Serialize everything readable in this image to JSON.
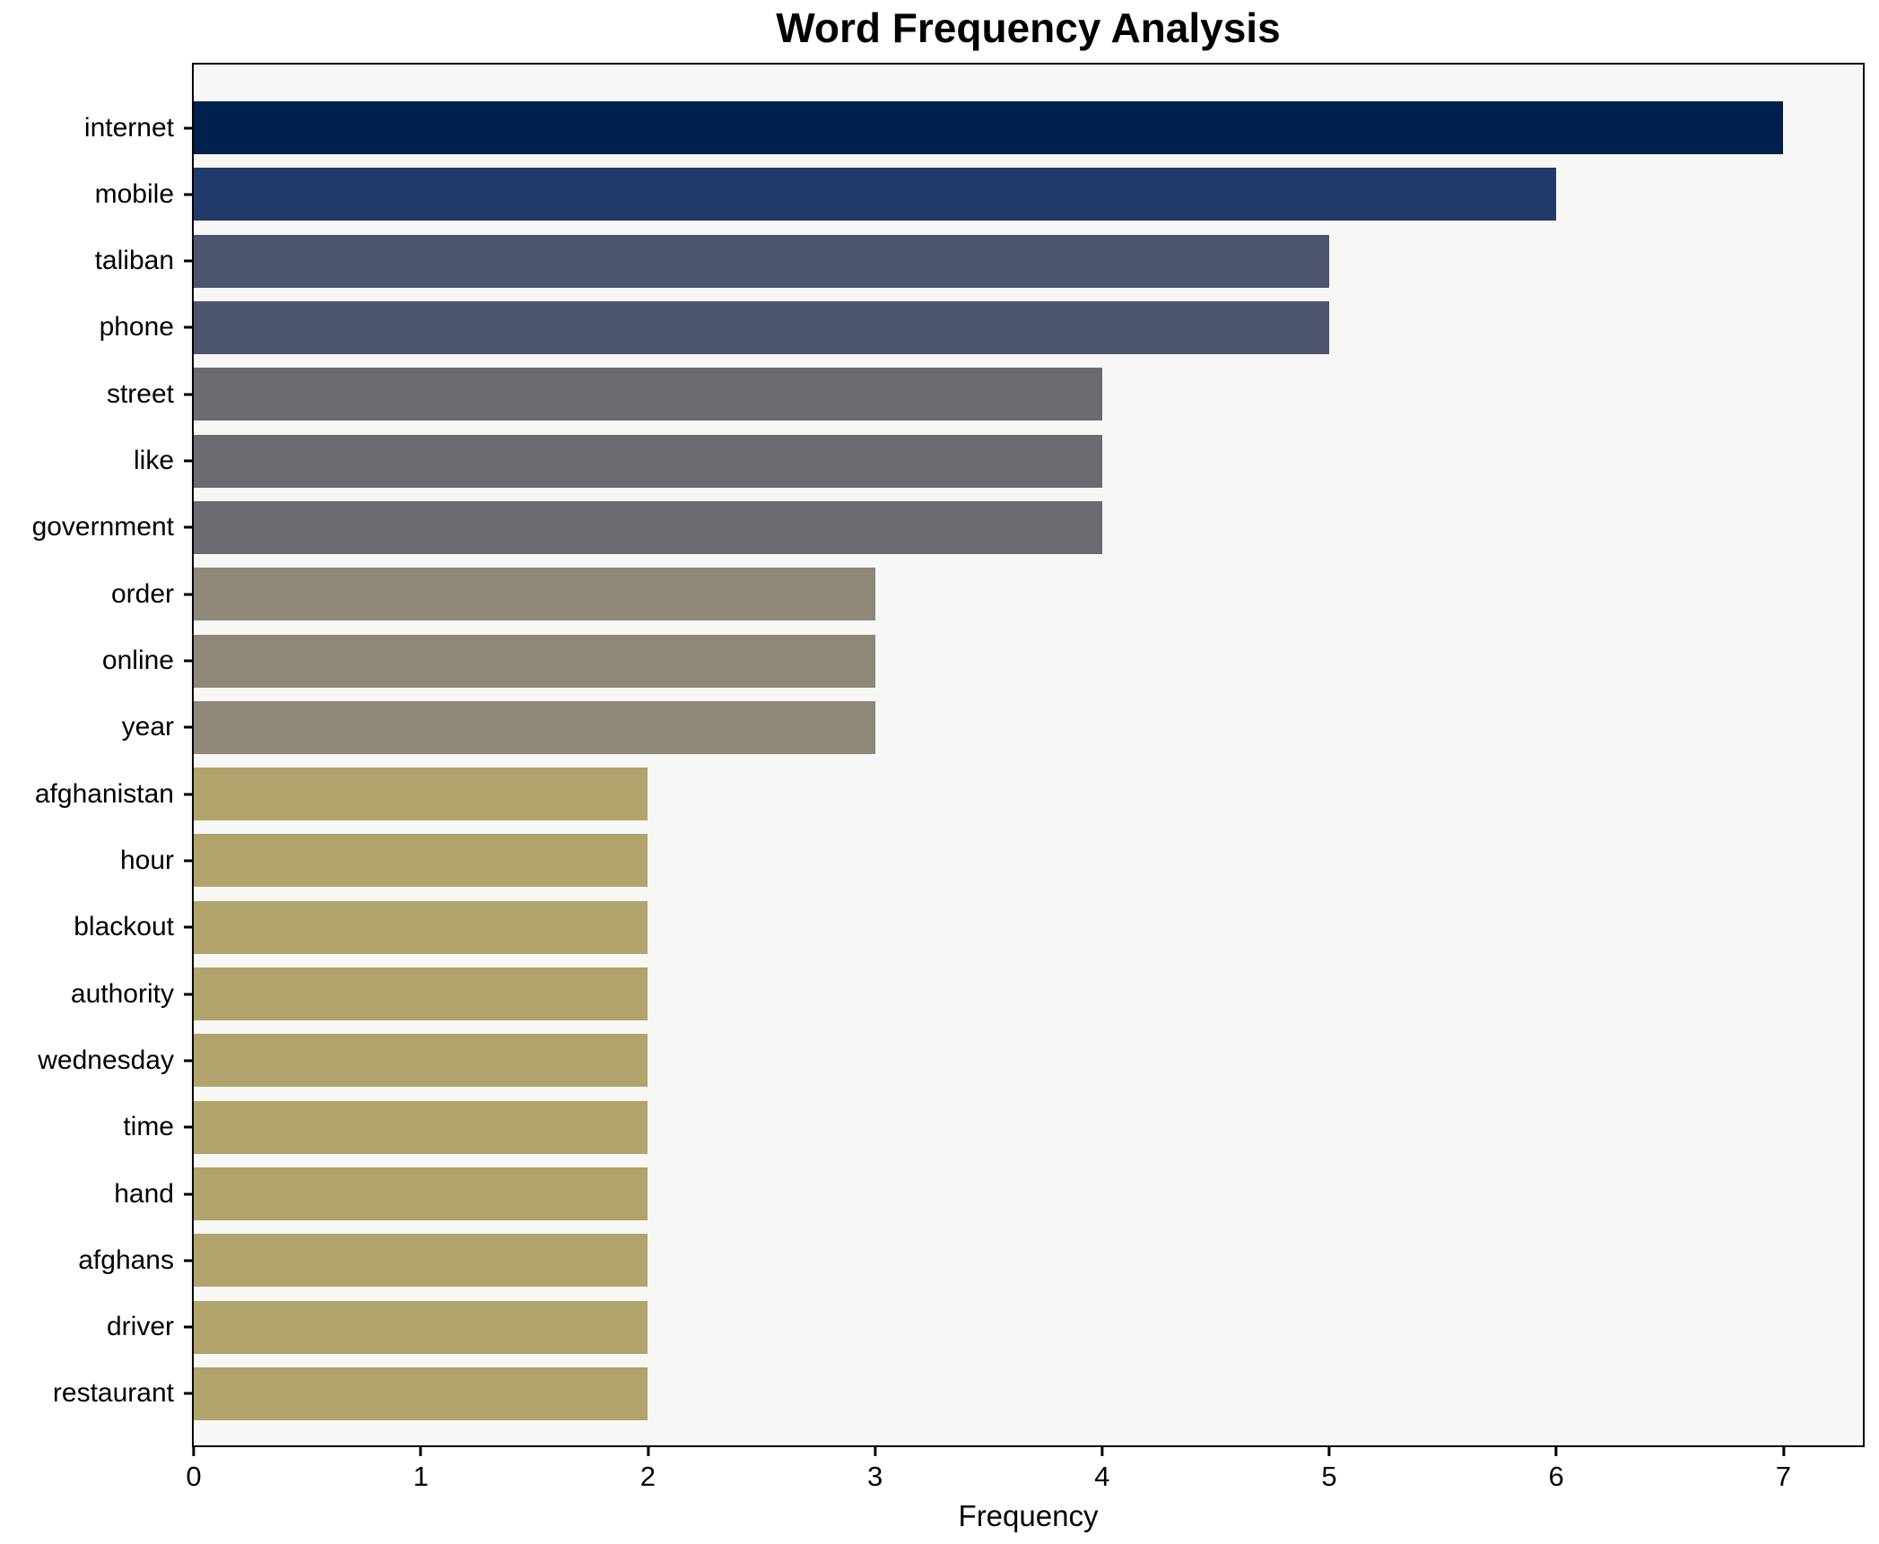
{
  "title": "Word Frequency Analysis",
  "xlabel": "Frequency",
  "colors": {
    "plot_background": "#f7f7f5",
    "figure_background": "#ffffff",
    "spine": "#000000",
    "text": "#000000"
  },
  "chart_data": {
    "type": "bar",
    "orientation": "horizontal",
    "title": "Word Frequency Analysis",
    "xlabel": "Frequency",
    "ylabel": "",
    "grid": false,
    "legend": false,
    "xlim": [
      0,
      7.35
    ],
    "xticks": [
      0,
      1,
      2,
      3,
      4,
      5,
      6,
      7
    ],
    "categories": [
      "internet",
      "mobile",
      "taliban",
      "phone",
      "street",
      "like",
      "government",
      "order",
      "online",
      "year",
      "afghanistan",
      "hour",
      "blackout",
      "authority",
      "wednesday",
      "time",
      "hand",
      "afghans",
      "driver",
      "restaurant"
    ],
    "values": [
      7,
      6,
      5,
      5,
      4,
      4,
      4,
      3,
      3,
      3,
      2,
      2,
      2,
      2,
      2,
      2,
      2,
      2,
      2,
      2
    ],
    "bar_colors": [
      "#00204d",
      "#213a6b",
      "#4d556f",
      "#4d556f",
      "#6a6b70",
      "#6a6b70",
      "#6a6b70",
      "#8e8879",
      "#8e8879",
      "#8e8879",
      "#b0a46c",
      "#b0a46c",
      "#b0a46c",
      "#b0a46c",
      "#b0a46c",
      "#b0a46c",
      "#b0a46c",
      "#b0a46c",
      "#b0a46c",
      "#b0a46c"
    ]
  }
}
